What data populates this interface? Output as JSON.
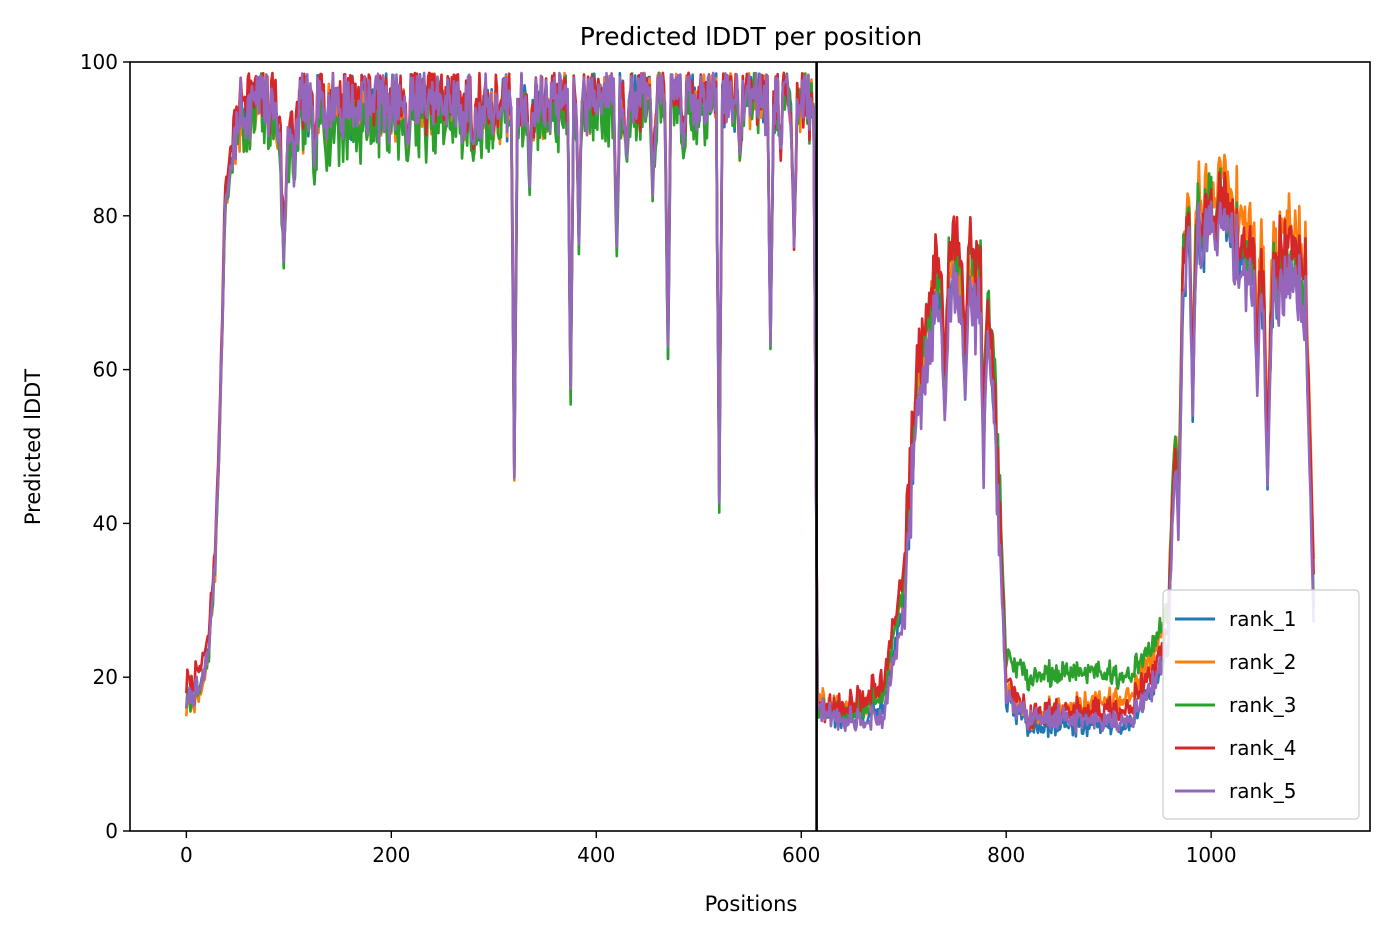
{
  "chart_data": {
    "type": "line",
    "title": "Predicted lDDT per position",
    "xlabel": "Positions",
    "ylabel": "Predicted lDDT",
    "xlim": [
      -55,
      1155
    ],
    "ylim": [
      0,
      100
    ],
    "xticks": [
      0,
      200,
      400,
      600,
      800,
      1000
    ],
    "yticks": [
      0,
      20,
      40,
      60,
      80,
      100
    ],
    "grid": false,
    "legend_position": "lower-right",
    "chain_break_x": 615,
    "x_max": 1100,
    "colors": {
      "rank_1": "#1f77b4",
      "rank_2": "#ff7f0e",
      "rank_3": "#2ca02c",
      "rank_4": "#d62728",
      "rank_5": "#9467bd",
      "break_line": "#000000"
    },
    "base_profile": [
      [
        0,
        17
      ],
      [
        8,
        18
      ],
      [
        15,
        19
      ],
      [
        22,
        24
      ],
      [
        28,
        35
      ],
      [
        33,
        55
      ],
      [
        38,
        82
      ],
      [
        45,
        88
      ],
      [
        52,
        93
      ],
      [
        70,
        95
      ],
      [
        85,
        94
      ],
      [
        95,
        90
      ],
      [
        110,
        94
      ],
      [
        200,
        95
      ],
      [
        300,
        94
      ],
      [
        400,
        96
      ],
      [
        500,
        96
      ],
      [
        600,
        96
      ],
      [
        612,
        94
      ],
      [
        616,
        16
      ],
      [
        640,
        15
      ],
      [
        680,
        16
      ],
      [
        700,
        30
      ],
      [
        712,
        55
      ],
      [
        730,
        70
      ],
      [
        760,
        72
      ],
      [
        780,
        68
      ],
      [
        790,
        50
      ],
      [
        800,
        18
      ],
      [
        820,
        15
      ],
      [
        880,
        15
      ],
      [
        920,
        15
      ],
      [
        945,
        20
      ],
      [
        958,
        25
      ],
      [
        965,
        50
      ],
      [
        975,
        75
      ],
      [
        990,
        78
      ],
      [
        1010,
        80
      ],
      [
        1040,
        72
      ],
      [
        1060,
        70
      ],
      [
        1080,
        74
      ],
      [
        1092,
        70
      ],
      [
        1100,
        30
      ]
    ],
    "dips": [
      [
        95,
        75,
        3
      ],
      [
        105,
        85,
        2
      ],
      [
        125,
        86,
        2
      ],
      [
        215,
        89,
        2
      ],
      [
        280,
        88,
        2
      ],
      [
        320,
        47,
        2
      ],
      [
        335,
        85,
        2
      ],
      [
        375,
        58,
        2
      ],
      [
        383,
        77,
        2
      ],
      [
        420,
        77,
        2
      ],
      [
        430,
        88,
        2
      ],
      [
        455,
        84,
        2
      ],
      [
        470,
        62,
        2
      ],
      [
        485,
        89,
        2
      ],
      [
        520,
        44,
        2
      ],
      [
        540,
        88,
        2
      ],
      [
        570,
        64,
        2
      ],
      [
        580,
        88,
        2
      ],
      [
        593,
        76,
        2
      ],
      [
        740,
        55,
        3
      ],
      [
        760,
        58,
        2
      ],
      [
        778,
        48,
        2
      ],
      [
        968,
        40,
        3
      ],
      [
        982,
        55,
        2
      ],
      [
        1055,
        46,
        3
      ],
      [
        1045,
        58,
        2
      ]
    ],
    "series": [
      {
        "name": "rank_1",
        "offsets": [
          [
            0,
            0
          ],
          [
            600,
            0
          ],
          [
            616,
            0
          ],
          [
            820,
            -1
          ],
          [
            880,
            -1
          ],
          [
            1100,
            0
          ]
        ],
        "seed": 11
      },
      {
        "name": "rank_2",
        "offsets": [
          [
            0,
            -1
          ],
          [
            600,
            0
          ],
          [
            616,
            1
          ],
          [
            700,
            2
          ],
          [
            820,
            0
          ],
          [
            1000,
            5
          ],
          [
            1100,
            6
          ]
        ],
        "seed": 23
      },
      {
        "name": "rank_3",
        "offsets": [
          [
            0,
            0
          ],
          [
            150,
            -3
          ],
          [
            300,
            -2
          ],
          [
            500,
            -2
          ],
          [
            600,
            0
          ],
          [
            616,
            0
          ],
          [
            820,
            5
          ],
          [
            880,
            6
          ],
          [
            940,
            5
          ],
          [
            1000,
            2
          ],
          [
            1100,
            0
          ]
        ],
        "seed": 37
      },
      {
        "name": "rank_4",
        "offsets": [
          [
            0,
            2
          ],
          [
            600,
            0
          ],
          [
            616,
            0
          ],
          [
            700,
            4
          ],
          [
            760,
            5
          ],
          [
            820,
            0
          ],
          [
            1000,
            2
          ],
          [
            1100,
            4
          ]
        ],
        "seed": 41
      },
      {
        "name": "rank_5",
        "offsets": [
          [
            0,
            0
          ],
          [
            600,
            0
          ],
          [
            616,
            0
          ],
          [
            760,
            -3
          ],
          [
            820,
            0
          ],
          [
            1000,
            -1
          ],
          [
            1100,
            -2
          ]
        ],
        "seed": 53
      }
    ]
  }
}
